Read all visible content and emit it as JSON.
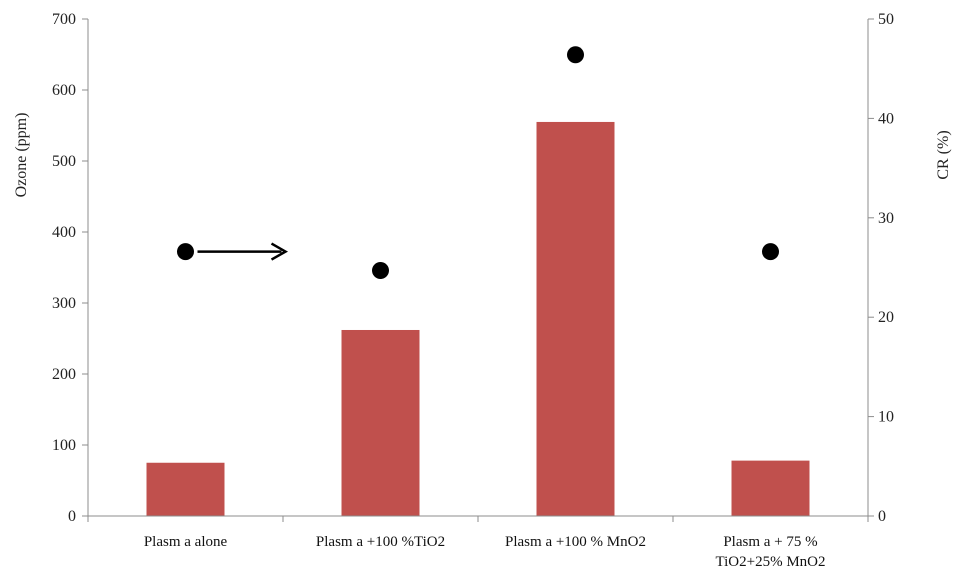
{
  "chart_data": {
    "type": "bar",
    "categories": [
      [
        "Plasm a alone"
      ],
      [
        "Plasm a +100 %TiO2"
      ],
      [
        "Plasm a +100 % MnO2"
      ],
      [
        "Plasm a + 75 %",
        "TiO2+25% MnO2"
      ]
    ],
    "series": [
      {
        "axis": "left",
        "kind": "bar",
        "values": [
          75,
          262,
          555,
          78
        ],
        "color": "#c0504d"
      },
      {
        "axis": "right",
        "kind": "scatter",
        "values": [
          26.6,
          24.7,
          46.4,
          26.6
        ],
        "color": "#000000"
      }
    ],
    "ylabel": "Ozone (ppm)",
    "y2label": "CR (%)",
    "ylim": [
      0,
      700
    ],
    "y2lim": [
      0,
      50
    ],
    "yticks": [
      0,
      100,
      200,
      300,
      400,
      500,
      600,
      700
    ],
    "y2ticks": [
      0,
      10,
      20,
      30,
      40,
      50
    ],
    "grid": false,
    "legend": "none",
    "annotations": [
      {
        "type": "arrow",
        "from": {
          "category": 0,
          "axis": "right",
          "value": 26.6
        },
        "direction": "right"
      }
    ]
  }
}
